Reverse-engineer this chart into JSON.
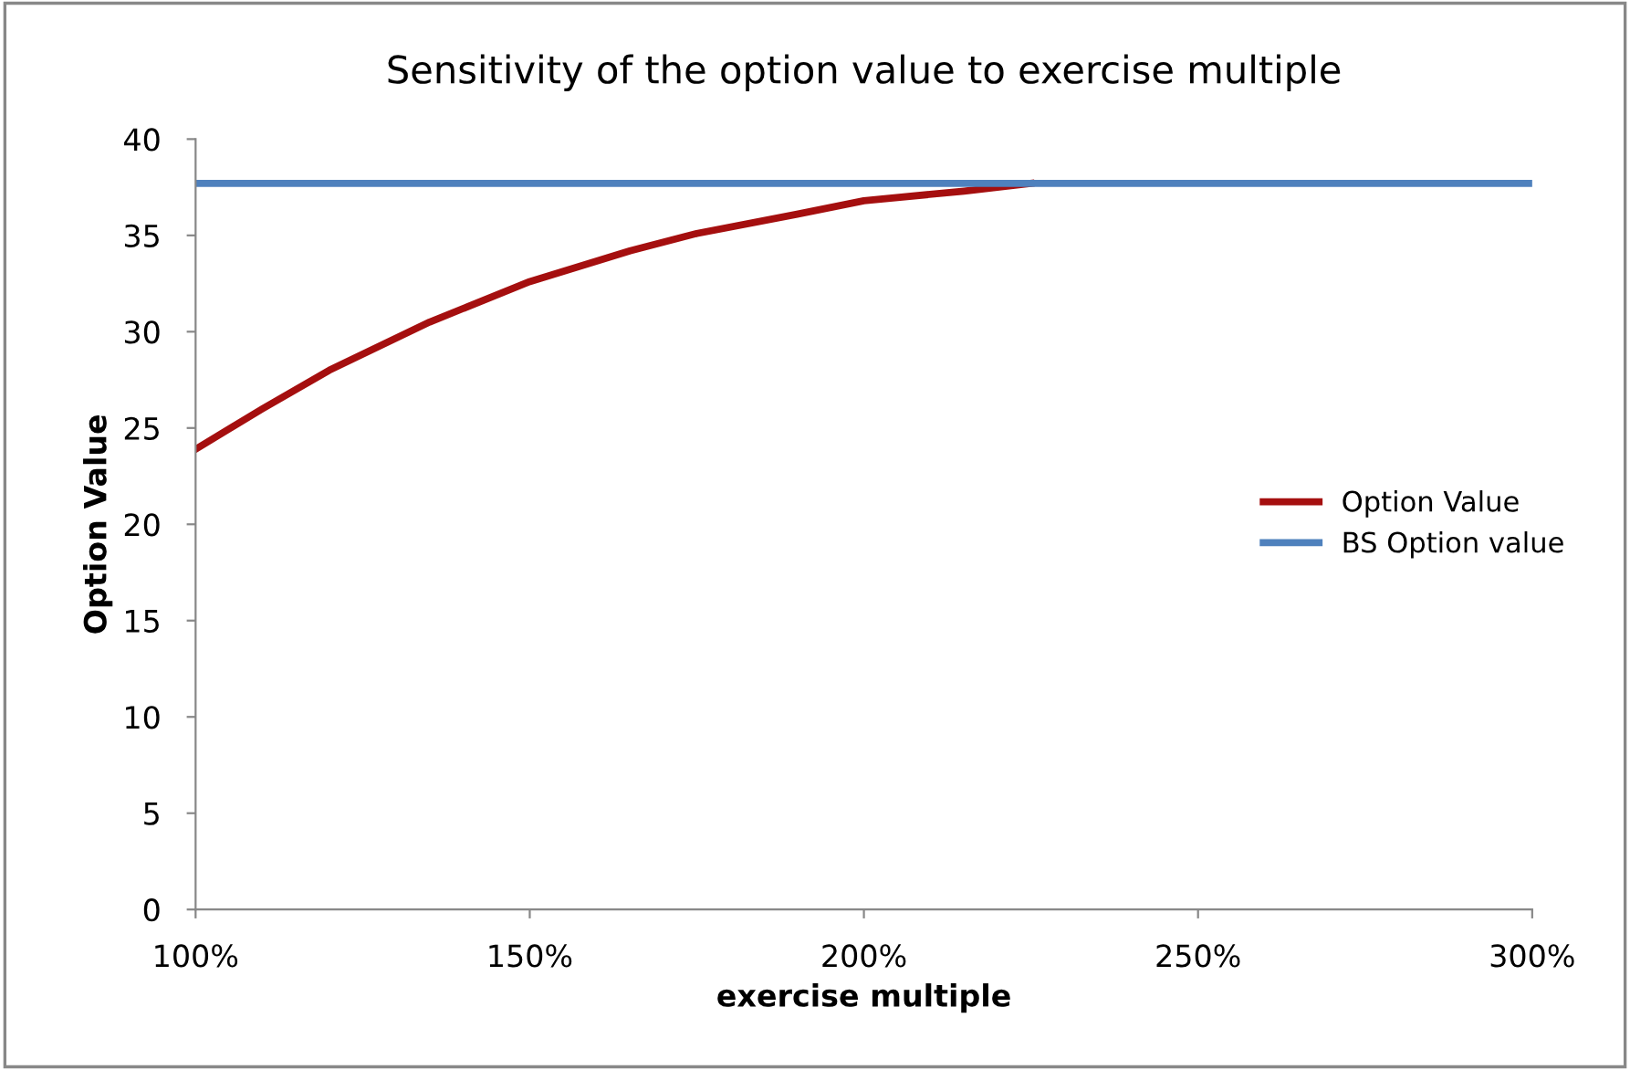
{
  "chart_data": {
    "type": "line",
    "title": "Sensitivity of the option value to exercise multiple",
    "xlabel": "exercise multiple",
    "ylabel": "Option Value",
    "x": [
      100,
      110,
      120,
      135,
      150,
      165,
      175,
      190,
      200,
      215,
      225,
      250,
      275,
      300
    ],
    "series": [
      {
        "name": "Option Value",
        "color": "#a50f0f",
        "values": [
          23.9,
          26.0,
          28.0,
          30.5,
          32.6,
          34.2,
          35.1,
          36.1,
          36.8,
          37.3,
          37.7,
          null,
          null,
          null
        ]
      },
      {
        "name": "BS Option value",
        "color": "#4f81bd",
        "values": [
          37.7,
          37.7,
          37.7,
          37.7,
          37.7,
          37.7,
          37.7,
          37.7,
          37.7,
          37.7,
          37.7,
          37.7,
          37.7,
          37.7
        ]
      }
    ],
    "xlim": [
      100,
      300
    ],
    "xticks": [
      {
        "value": 100,
        "label": "100%"
      },
      {
        "value": 150,
        "label": "150%"
      },
      {
        "value": 200,
        "label": "200%"
      },
      {
        "value": 250,
        "label": "250%"
      },
      {
        "value": 300,
        "label": "300%"
      }
    ],
    "ylim": [
      0,
      40
    ],
    "yticks": [
      0,
      5,
      10,
      15,
      20,
      25,
      30,
      35,
      40
    ],
    "grid": false,
    "legend": "right",
    "marker": "none",
    "line_style": "solid"
  }
}
